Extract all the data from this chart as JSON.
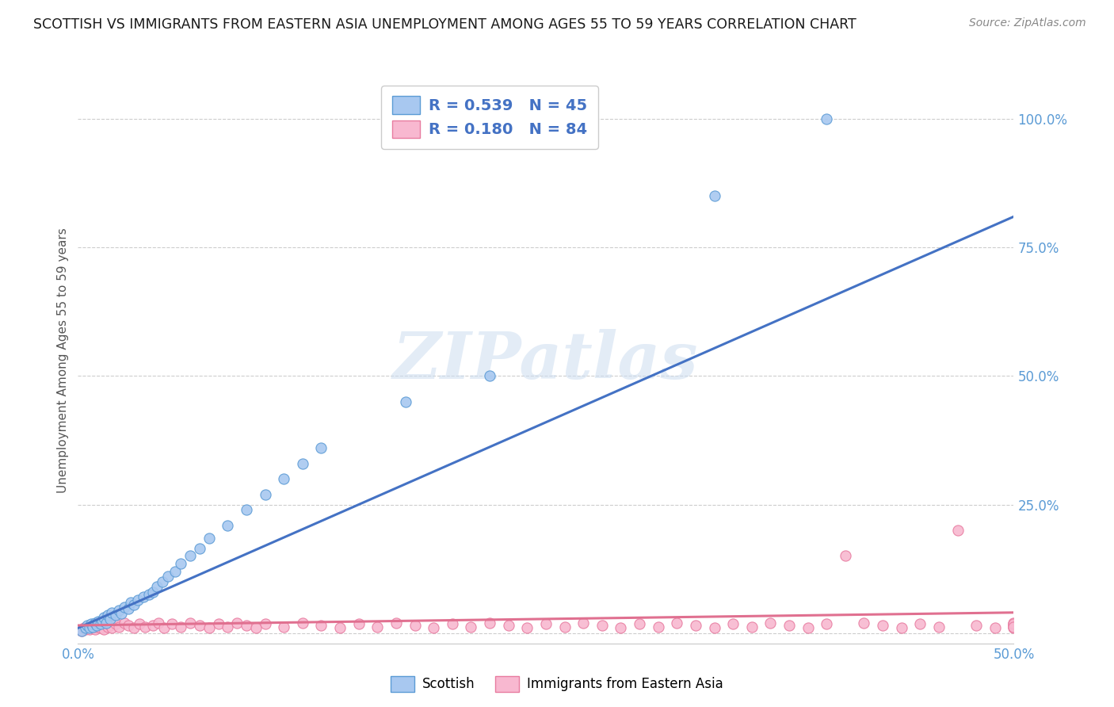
{
  "title": "SCOTTISH VS IMMIGRANTS FROM EASTERN ASIA UNEMPLOYMENT AMONG AGES 55 TO 59 YEARS CORRELATION CHART",
  "source": "Source: ZipAtlas.com",
  "ylabel": "Unemployment Among Ages 55 to 59 years",
  "xlim": [
    0.0,
    0.5
  ],
  "ylim": [
    -0.02,
    1.08
  ],
  "yticks": [
    0.0,
    0.25,
    0.5,
    0.75,
    1.0
  ],
  "ytick_labels": [
    "",
    "25.0%",
    "50.0%",
    "75.0%",
    "100.0%"
  ],
  "xticks": [
    0.0,
    0.5
  ],
  "xtick_labels": [
    "0.0%",
    "50.0%"
  ],
  "R_scottish": "0.539",
  "N_scottish": "45",
  "R_immigrant": "0.180",
  "N_immigrant": "84",
  "label_scottish": "Scottish",
  "label_immigrant": "Immigrants from Eastern Asia",
  "watermark": "ZIPatlas",
  "background_color": "#ffffff",
  "grid_color": "#c8c8c8",
  "title_color": "#1a1a1a",
  "source_color": "#888888",
  "axis_label_color": "#5b9bd5",
  "ylabel_color": "#555555",
  "scatter_blue_fill": "#a8c8f0",
  "scatter_blue_edge": "#5b9bd5",
  "scatter_pink_fill": "#f8b8d0",
  "scatter_pink_edge": "#e87ca0",
  "line_blue_color": "#4472c4",
  "line_pink_color": "#e07090",
  "legend_text_color": "#4472c4",
  "legend_edge_color": "#cccccc",
  "scottish_x": [
    0.002,
    0.004,
    0.005,
    0.006,
    0.007,
    0.008,
    0.009,
    0.01,
    0.011,
    0.012,
    0.013,
    0.014,
    0.015,
    0.016,
    0.017,
    0.018,
    0.02,
    0.022,
    0.023,
    0.025,
    0.027,
    0.028,
    0.03,
    0.032,
    0.035,
    0.038,
    0.04,
    0.042,
    0.045,
    0.048,
    0.052,
    0.055,
    0.06,
    0.065,
    0.07,
    0.08,
    0.09,
    0.1,
    0.11,
    0.12,
    0.13,
    0.175,
    0.22,
    0.34,
    0.4
  ],
  "scottish_y": [
    0.005,
    0.01,
    0.015,
    0.01,
    0.018,
    0.012,
    0.02,
    0.015,
    0.022,
    0.018,
    0.025,
    0.03,
    0.02,
    0.035,
    0.028,
    0.04,
    0.035,
    0.045,
    0.038,
    0.05,
    0.048,
    0.06,
    0.055,
    0.065,
    0.07,
    0.075,
    0.08,
    0.09,
    0.1,
    0.11,
    0.12,
    0.135,
    0.15,
    0.165,
    0.185,
    0.21,
    0.24,
    0.27,
    0.3,
    0.33,
    0.36,
    0.45,
    0.5,
    0.85,
    1.0
  ],
  "immigrant_x": [
    0.002,
    0.003,
    0.004,
    0.005,
    0.006,
    0.007,
    0.008,
    0.009,
    0.01,
    0.011,
    0.012,
    0.013,
    0.014,
    0.015,
    0.016,
    0.017,
    0.018,
    0.02,
    0.022,
    0.025,
    0.027,
    0.03,
    0.033,
    0.036,
    0.04,
    0.043,
    0.046,
    0.05,
    0.055,
    0.06,
    0.065,
    0.07,
    0.075,
    0.08,
    0.085,
    0.09,
    0.095,
    0.1,
    0.11,
    0.12,
    0.13,
    0.14,
    0.15,
    0.16,
    0.17,
    0.18,
    0.19,
    0.2,
    0.21,
    0.22,
    0.23,
    0.24,
    0.25,
    0.26,
    0.27,
    0.28,
    0.29,
    0.3,
    0.31,
    0.32,
    0.33,
    0.34,
    0.35,
    0.36,
    0.37,
    0.38,
    0.39,
    0.4,
    0.41,
    0.42,
    0.43,
    0.44,
    0.45,
    0.46,
    0.47,
    0.48,
    0.49,
    0.5,
    0.5,
    0.5,
    0.5,
    0.5,
    0.5,
    0.5
  ],
  "immigrant_y": [
    0.005,
    0.01,
    0.008,
    0.012,
    0.007,
    0.015,
    0.01,
    0.008,
    0.012,
    0.015,
    0.01,
    0.018,
    0.008,
    0.02,
    0.012,
    0.015,
    0.01,
    0.018,
    0.012,
    0.02,
    0.015,
    0.01,
    0.018,
    0.012,
    0.015,
    0.02,
    0.01,
    0.018,
    0.012,
    0.02,
    0.015,
    0.01,
    0.018,
    0.012,
    0.02,
    0.015,
    0.01,
    0.018,
    0.012,
    0.02,
    0.015,
    0.01,
    0.018,
    0.012,
    0.02,
    0.015,
    0.01,
    0.018,
    0.012,
    0.02,
    0.015,
    0.01,
    0.018,
    0.012,
    0.02,
    0.015,
    0.01,
    0.018,
    0.012,
    0.02,
    0.015,
    0.01,
    0.018,
    0.012,
    0.02,
    0.015,
    0.01,
    0.018,
    0.15,
    0.02,
    0.015,
    0.01,
    0.018,
    0.012,
    0.2,
    0.015,
    0.01,
    0.018,
    0.012,
    0.02,
    0.015,
    0.01,
    0.018,
    0.012
  ]
}
